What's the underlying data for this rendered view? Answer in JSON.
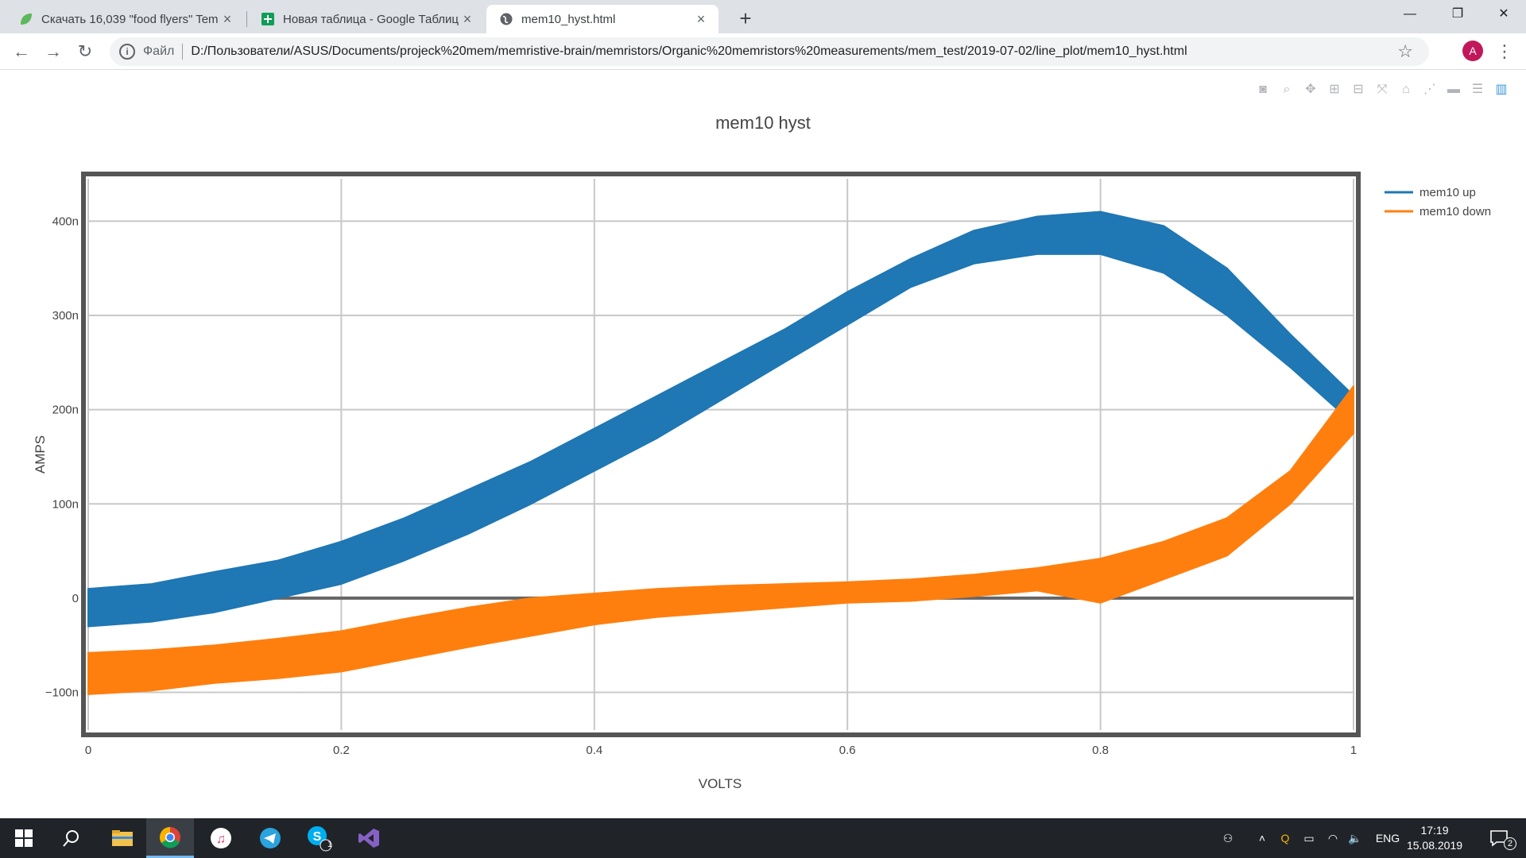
{
  "browser": {
    "tabs": [
      {
        "title": "Скачать 16,039 \"food flyers\" Tem",
        "icon": "leaf-icon",
        "active": false
      },
      {
        "title": "Новая таблица - Google Таблиц",
        "icon": "sheets-icon",
        "active": false
      },
      {
        "title": "mem10_hyst.html",
        "icon": "globe-icon",
        "active": true
      }
    ],
    "new_tab_symbol": "+",
    "window_controls": {
      "minimize": "—",
      "restore": "❐",
      "close": "✕"
    },
    "address": {
      "scheme_label": "Файл",
      "url": "D:/Пользователи/ASUS/Documents/projeck%20mem/memristive-brain/memristors/Organic%20memristors%20measurements/mem_test/2019-07-02/line_plot/mem10_hyst.html"
    },
    "profile_initial": "A"
  },
  "modebar": [
    "camera-icon",
    "zoom-icon",
    "pan-icon",
    "zoom-in-icon",
    "zoom-out-icon",
    "autoscale-icon",
    "reset-axes-icon",
    "spike-lines-icon",
    "hover-closest-icon",
    "hover-compare-icon",
    "plotly-logo-icon"
  ],
  "chart_data": {
    "type": "line",
    "title": "mem10 hyst",
    "xlabel": "VOLTS",
    "ylabel": "AMPS",
    "xlim": [
      0,
      1
    ],
    "ylim": [
      -140,
      445
    ],
    "y_unit": "n",
    "x_ticks": [
      "0",
      "0.2",
      "0.4",
      "0.6",
      "0.8",
      "1"
    ],
    "x_tick_values": [
      0,
      0.2,
      0.4,
      0.6,
      0.8,
      1
    ],
    "y_ticks": [
      "−100n",
      "0",
      "100n",
      "200n",
      "300n",
      "400n"
    ],
    "y_tick_values": [
      -100,
      0,
      100,
      200,
      300,
      400
    ],
    "grid": true,
    "legend_position": "top-right",
    "series": [
      {
        "name": "mem10 up",
        "color": "#1f77b4",
        "x": [
          0,
          0.05,
          0.1,
          0.15,
          0.2,
          0.25,
          0.3,
          0.35,
          0.4,
          0.45,
          0.5,
          0.55,
          0.6,
          0.65,
          0.7,
          0.75,
          0.8,
          0.85,
          0.9,
          0.95,
          1
        ],
        "y_upper": [
          10,
          15,
          28,
          40,
          60,
          85,
          115,
          145,
          180,
          215,
          250,
          285,
          325,
          360,
          390,
          405,
          410,
          395,
          350,
          280,
          215
        ],
        "y_lower": [
          -30,
          -25,
          -15,
          0,
          15,
          40,
          68,
          100,
          135,
          170,
          210,
          250,
          290,
          330,
          355,
          365,
          365,
          345,
          300,
          245,
          185
        ]
      },
      {
        "name": "mem10 down",
        "color": "#ff7f0e",
        "x": [
          0,
          0.05,
          0.1,
          0.15,
          0.2,
          0.25,
          0.3,
          0.35,
          0.4,
          0.45,
          0.5,
          0.55,
          0.6,
          0.65,
          0.7,
          0.75,
          0.8,
          0.85,
          0.9,
          0.95,
          1
        ],
        "y_upper": [
          -58,
          -55,
          -50,
          -43,
          -35,
          -22,
          -10,
          0,
          5,
          10,
          13,
          15,
          17,
          20,
          25,
          32,
          42,
          60,
          85,
          135,
          225
        ],
        "y_lower": [
          -102,
          -98,
          -90,
          -85,
          -78,
          -65,
          -52,
          -40,
          -28,
          -20,
          -15,
          -10,
          -5,
          -3,
          2,
          8,
          -5,
          20,
          45,
          100,
          175
        ]
      }
    ]
  },
  "taskbar": {
    "apps": [
      "windows-start-icon",
      "search-icon",
      "file-explorer-icon",
      "chrome-icon",
      "itunes-icon",
      "telegram-icon",
      "skype-icon",
      "visual-studio-icon"
    ],
    "skype_badge": "1",
    "language": "ENG",
    "time": "17:19",
    "date": "15.08.2019",
    "notification_count": "2"
  }
}
